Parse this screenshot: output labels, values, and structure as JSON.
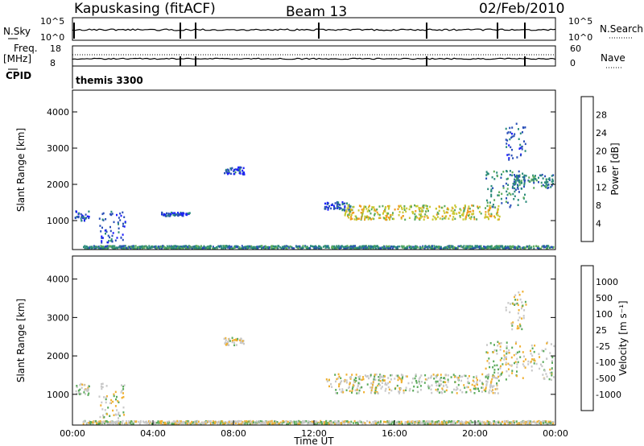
{
  "header": {
    "station": "Kapuskasing (fitACF)",
    "beam": "Beam 13",
    "date": "02/Feb/2010"
  },
  "panels": {
    "nsky": {
      "left_label": "N.Sky",
      "right_label": "N.Search",
      "left_ticks": [
        "10^5",
        "10^0"
      ],
      "right_ticks": [
        "10^5",
        "10^0"
      ]
    },
    "freq": {
      "left_label_1": "Freq.",
      "left_label_2": "[MHz]",
      "right_label": "Nave",
      "left_ticks": [
        "18",
        "8"
      ],
      "right_ticks": [
        "60",
        "0"
      ]
    },
    "cpid": {
      "label": "CPID",
      "value": "themis 3300"
    }
  },
  "chart_data": [
    {
      "type": "heatmap",
      "name": "power",
      "ylabel": "Slant Range [km]",
      "x_range_hours": [
        0,
        24
      ],
      "ylim": [
        200,
        4600
      ],
      "y_ticks": [
        1000,
        2000,
        3000,
        4000
      ],
      "colorbar": {
        "label": "Power [dB]",
        "ticks": [
          "4",
          "8",
          "12",
          "16",
          "20",
          "24",
          "28"
        ],
        "colors": [
          "#1c1cff",
          "#2a4fb8",
          "#2a8a7a",
          "#5aaa5a",
          "#c8c832",
          "#f09a1e",
          "#e83a14",
          "#ff0000"
        ]
      },
      "regions": [
        {
          "x": [
            0.1,
            0.8
          ],
          "y": [
            1000,
            1300
          ],
          "level": 1
        },
        {
          "x": [
            1.3,
            2.6
          ],
          "y": [
            400,
            1300
          ],
          "level": 1
        },
        {
          "x": [
            4.4,
            5.8
          ],
          "y": [
            1150,
            1250
          ],
          "level": 1
        },
        {
          "x": [
            7.5,
            8.5
          ],
          "y": [
            2300,
            2500
          ],
          "level": 1
        },
        {
          "x": [
            12.5,
            13.8
          ],
          "y": [
            1300,
            1550
          ],
          "level": 1
        },
        {
          "x": [
            13.5,
            21.2
          ],
          "y": [
            1050,
            1450
          ],
          "level": 4
        },
        {
          "x": [
            20.5,
            22.5
          ],
          "y": [
            1400,
            2400
          ],
          "level": 2
        },
        {
          "x": [
            21.8,
            23.9
          ],
          "y": [
            1900,
            2300
          ],
          "level": 2
        },
        {
          "x": [
            21.5,
            22.5
          ],
          "y": [
            2700,
            3700
          ],
          "level": 1
        },
        {
          "x": [
            0.5,
            23.9
          ],
          "y": [
            250,
            330
          ],
          "level": 2
        }
      ]
    },
    {
      "type": "heatmap",
      "name": "velocity",
      "ylabel": "Slant Range [km]",
      "xlabel": "Time UT",
      "x_range_hours": [
        0,
        24
      ],
      "ylim": [
        200,
        4600
      ],
      "y_ticks": [
        1000,
        2000,
        3000,
        4000
      ],
      "x_ticks": [
        "00:00",
        "04:00",
        "08:00",
        "12:00",
        "16:00",
        "20:00",
        "00:00"
      ],
      "colorbar": {
        "label": "Velocity [m s⁻¹]",
        "ticks": [
          "-1000",
          "-500",
          "-100",
          "-25",
          "25",
          "100",
          "500",
          "1000"
        ],
        "colors": [
          "#ff0000",
          "#e83a14",
          "#f09a1e",
          "#f0b030",
          "#c8c8c8",
          "#5aaa5a",
          "#2a8a7a",
          "#2a4fb8",
          "#1c1cff"
        ]
      },
      "regions": [
        {
          "x": [
            0.1,
            0.8
          ],
          "y": [
            1000,
            1300
          ],
          "level": 4
        },
        {
          "x": [
            1.3,
            2.6
          ],
          "y": [
            400,
            1300
          ],
          "level": 4
        },
        {
          "x": [
            7.5,
            8.5
          ],
          "y": [
            2300,
            2500
          ],
          "level": 4
        },
        {
          "x": [
            12.5,
            21.2
          ],
          "y": [
            1050,
            1550
          ],
          "level": 4
        },
        {
          "x": [
            20.5,
            23.9
          ],
          "y": [
            1400,
            2400
          ],
          "level": 4
        },
        {
          "x": [
            21.5,
            22.5
          ],
          "y": [
            2700,
            3700
          ],
          "level": 4
        },
        {
          "x": [
            0.5,
            23.9
          ],
          "y": [
            250,
            330
          ],
          "level": 4
        }
      ]
    }
  ]
}
